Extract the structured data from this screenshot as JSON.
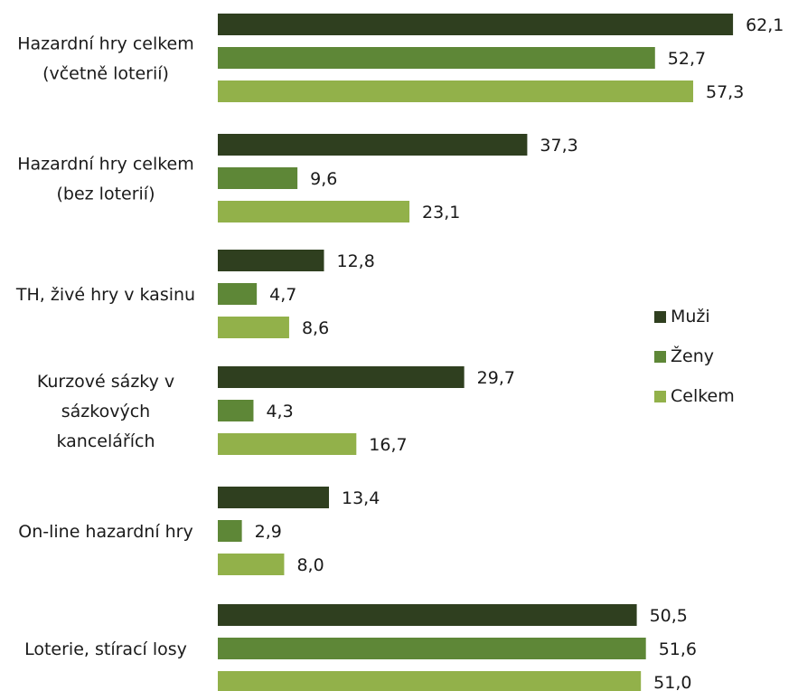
{
  "chart_data": {
    "type": "bar",
    "orientation": "horizontal",
    "categories": [
      [
        "Hazardní hry celkem",
        "(včetně loterií)"
      ],
      [
        "Hazardní hry celkem",
        "(bez loterií)"
      ],
      [
        "TH, živé hry v kasinu"
      ],
      [
        "Kurzové sázky v",
        "sázkových",
        "kancelářích"
      ],
      [
        "On-line hazardní hry"
      ],
      [
        "Loterie, stírací losy"
      ]
    ],
    "series": [
      {
        "name": "Muži",
        "color": "#2f3f1f",
        "values": [
          62.1,
          37.3,
          12.8,
          29.7,
          13.4,
          50.5
        ]
      },
      {
        "name": "Ženy",
        "color": "#5e8737",
        "values": [
          52.7,
          9.6,
          4.7,
          4.3,
          2.9,
          51.6
        ]
      },
      {
        "name": "Celkem",
        "color": "#92b14a",
        "values": [
          57.3,
          23.1,
          8.6,
          16.7,
          8.0,
          51.0
        ]
      }
    ],
    "xlim": [
      0,
      70
    ],
    "decimal_separator": ",",
    "grid": false,
    "legend_position": "right"
  }
}
